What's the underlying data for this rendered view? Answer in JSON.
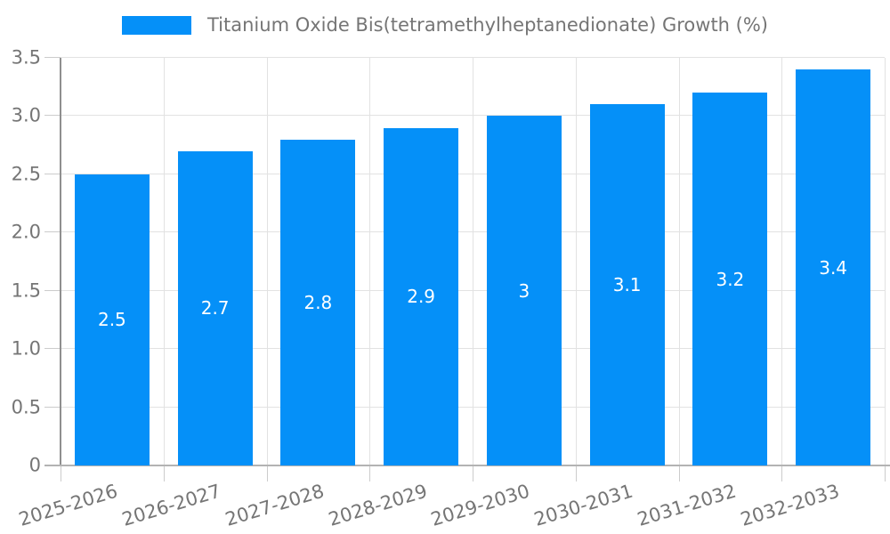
{
  "chart_data": {
    "type": "bar",
    "title": "",
    "xlabel": "",
    "ylabel": "",
    "legend": {
      "label": "Titanium Oxide Bis(tetramethylheptanedionate) Growth (%)",
      "position": "top"
    },
    "categories": [
      "2025-2026",
      "2026-2027",
      "2027-2028",
      "2028-2029",
      "2029-2030",
      "2030-2031",
      "2031-2032",
      "2032-2033"
    ],
    "series": [
      {
        "name": "Titanium Oxide Bis(tetramethylheptanedionate) Growth (%)",
        "values": [
          2.5,
          2.7,
          2.8,
          2.9,
          3,
          3.1,
          3.2,
          3.4
        ]
      }
    ],
    "value_labels": [
      "2.5",
      "2.7",
      "2.8",
      "2.9",
      "3",
      "3.1",
      "3.2",
      "3.4"
    ],
    "ylim": [
      0,
      3.5
    ],
    "ytick_values": [
      0,
      0.5,
      1,
      1.5,
      2,
      2.5,
      3,
      3.5
    ],
    "ytick_labels": [
      "0",
      "0.5",
      "1.0",
      "1.5",
      "2.0",
      "2.5",
      "3.0",
      "3.5"
    ],
    "grid": true,
    "legend_position": "top",
    "colors": {
      "bar": "#0590f8",
      "value_label": "#ffffff",
      "tick_label": "#757575",
      "legend_text": "#757575",
      "gridline": "#e2e2e2",
      "tick_mark": "#cccccc",
      "y_axis_line": "#8f8f8f",
      "x_axis_line": "#b3b3b3",
      "background": "#ffffff"
    }
  }
}
